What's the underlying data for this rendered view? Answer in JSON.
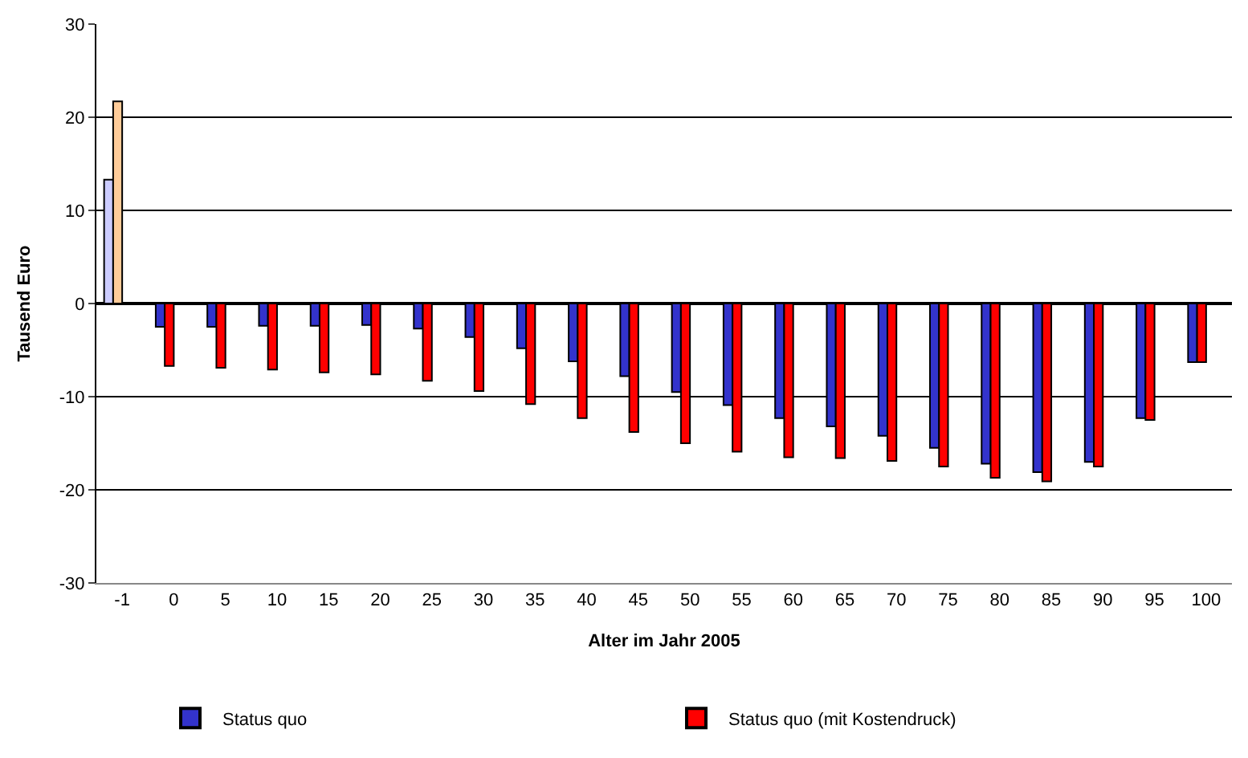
{
  "chart_data": {
    "type": "bar",
    "xlabel": "Alter im Jahr 2005",
    "ylabel": "Tausend Euro",
    "categories": [
      "-1",
      "0",
      "5",
      "10",
      "15",
      "20",
      "25",
      "30",
      "35",
      "40",
      "45",
      "50",
      "55",
      "60",
      "65",
      "70",
      "75",
      "80",
      "85",
      "90",
      "95",
      "100"
    ],
    "series": [
      {
        "name": "Status quo",
        "color": "#3333cc",
        "colors": [
          "#ccccff",
          "#3333cc",
          "#3333cc",
          "#3333cc",
          "#3333cc",
          "#3333cc",
          "#3333cc",
          "#3333cc",
          "#3333cc",
          "#3333cc",
          "#3333cc",
          "#3333cc",
          "#3333cc",
          "#3333cc",
          "#3333cc",
          "#3333cc",
          "#3333cc",
          "#3333cc",
          "#3333cc",
          "#3333cc",
          "#3333cc",
          "#3333cc"
        ],
        "values": [
          13.3,
          -2.5,
          -2.5,
          -2.4,
          -2.4,
          -2.3,
          -2.7,
          -3.6,
          -4.8,
          -6.2,
          -7.8,
          -9.5,
          -10.9,
          -12.3,
          -13.2,
          -14.2,
          -15.5,
          -17.2,
          -18.1,
          -17.0,
          -12.3,
          -6.3
        ]
      },
      {
        "name": "Status quo (mit Kostendruck)",
        "color": "#ff0000",
        "colors": [
          "#ffcc99",
          "#ff0000",
          "#ff0000",
          "#ff0000",
          "#ff0000",
          "#ff0000",
          "#ff0000",
          "#ff0000",
          "#ff0000",
          "#ff0000",
          "#ff0000",
          "#ff0000",
          "#ff0000",
          "#ff0000",
          "#ff0000",
          "#ff0000",
          "#ff0000",
          "#ff0000",
          "#ff0000",
          "#ff0000",
          "#ff0000",
          "#ff0000"
        ],
        "values": [
          21.7,
          -6.7,
          -6.9,
          -7.1,
          -7.4,
          -7.6,
          -8.3,
          -9.4,
          -10.8,
          -12.3,
          -13.8,
          -15.0,
          -15.9,
          -16.5,
          -16.6,
          -16.9,
          -17.5,
          -18.7,
          -19.1,
          -17.5,
          -12.5,
          -6.3
        ]
      }
    ],
    "ylim": [
      -30,
      30
    ],
    "yticks": [
      -30,
      -20,
      -10,
      0,
      10,
      20,
      30
    ],
    "grid": "y",
    "legend": "bottom"
  }
}
